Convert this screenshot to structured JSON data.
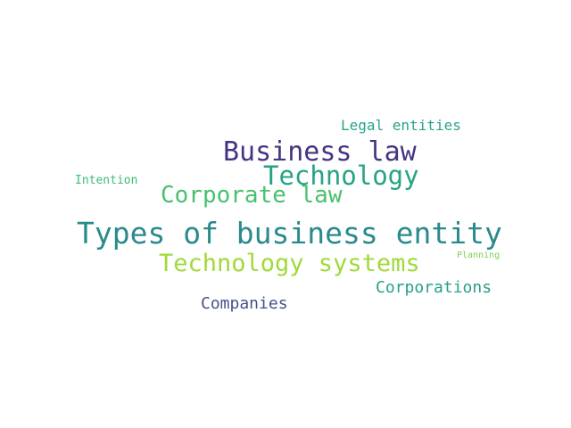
{
  "words": [
    {
      "id": "business-law",
      "text": "Business law",
      "color": "#463480"
    },
    {
      "id": "technology",
      "text": "Technology",
      "color": "#26a383"
    },
    {
      "id": "corporate-law",
      "text": "Corporate law",
      "color": "#48c16e"
    },
    {
      "id": "types",
      "text": "Types of business entity",
      "color": "#2a8a8c"
    },
    {
      "id": "tech-systems",
      "text": "Technology systems",
      "color": "#a0da39"
    },
    {
      "id": "legal-entities",
      "text": "Legal entities",
      "color": "#2aa38a"
    },
    {
      "id": "intention",
      "text": "Intention",
      "color": "#3dbc74"
    },
    {
      "id": "corporations",
      "text": "Corporations",
      "color": "#26a08a"
    },
    {
      "id": "companies",
      "text": "Companies",
      "color": "#46508a"
    },
    {
      "id": "planning",
      "text": "Planning",
      "color": "#7ad151"
    }
  ]
}
